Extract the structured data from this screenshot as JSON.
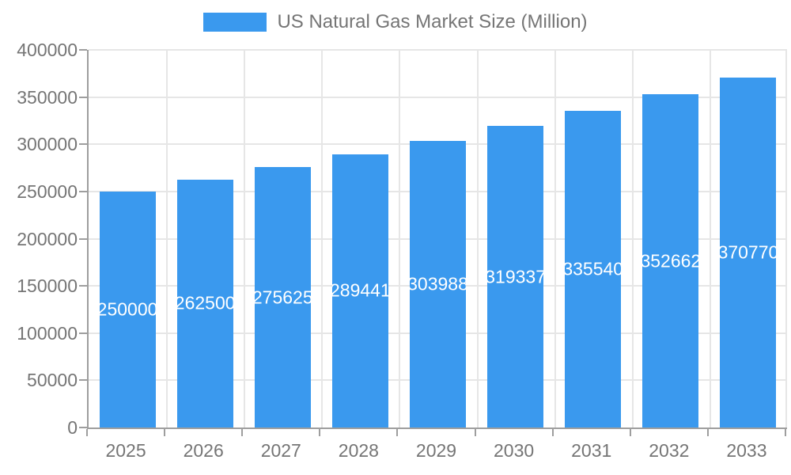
{
  "legend": {
    "label": "US Natural Gas Market Size (Million)"
  },
  "colors": {
    "bar": "#3a99ee",
    "axis_line": "#9e9e9e",
    "gridline": "#e6e6e6",
    "tick_text": "#757575",
    "bar_label_text": "#ffffff",
    "background": "#ffffff"
  },
  "chart_data": {
    "type": "bar",
    "title": "US Natural Gas Market Size (Million)",
    "categories": [
      "2025",
      "2026",
      "2027",
      "2028",
      "2029",
      "2030",
      "2031",
      "2032",
      "2033"
    ],
    "values": [
      250000,
      262500,
      275625,
      289441,
      303988,
      319337,
      335540,
      352662,
      370770
    ],
    "data_labels": [
      "250000",
      "262500",
      "275625",
      "289441",
      "303988",
      "319337",
      "335540",
      "352662",
      "370770"
    ],
    "xlabel": "",
    "ylabel": "",
    "ylim": [
      0,
      400000
    ],
    "y_ticks": [
      0,
      50000,
      100000,
      150000,
      200000,
      250000,
      300000,
      350000,
      400000
    ],
    "grid": true,
    "legend_position": "top",
    "bar_color": "#3a99ee"
  }
}
